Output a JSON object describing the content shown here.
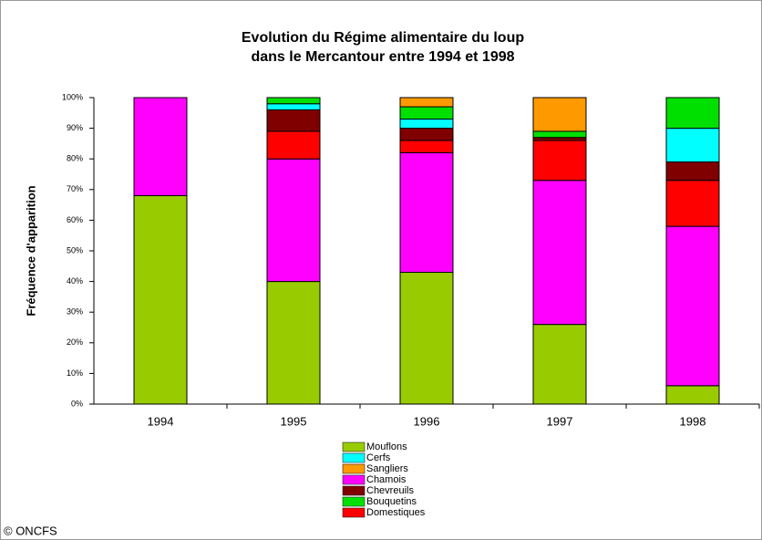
{
  "chart_data": {
    "type": "stacked_bar_100",
    "title": [
      "Evolution du Régime alimentaire du loup",
      "dans le Mercantour entre 1994 et 1998"
    ],
    "ylabel": "Fréquence d'apparition",
    "categories": [
      "1994",
      "1995",
      "1996",
      "1997",
      "1998"
    ],
    "series": [
      {
        "name": "Mouflons",
        "color": "#99cc00",
        "values": [
          68,
          40,
          43,
          26,
          6
        ]
      },
      {
        "name": "Cerfs",
        "color": "#00ffff",
        "values": [
          0,
          2,
          3,
          0,
          11
        ]
      },
      {
        "name": "Sangliers",
        "color": "#ff9900",
        "values": [
          0,
          0,
          3,
          11,
          0
        ]
      },
      {
        "name": "Chamois",
        "color": "#ff00ff",
        "values": [
          32,
          40,
          39,
          47,
          52
        ]
      },
      {
        "name": "Chevreuils",
        "color": "#800000",
        "values": [
          0,
          7,
          4,
          1,
          6
        ]
      },
      {
        "name": "Bouquetins",
        "color": "#00e000",
        "values": [
          0,
          2,
          4,
          2,
          10
        ]
      },
      {
        "name": "Domestiques",
        "color": "#ff0000",
        "values": [
          0,
          9,
          4,
          13,
          15
        ]
      }
    ],
    "ylim": [
      0,
      100
    ],
    "yticks": [
      {
        "value": 0,
        "label": "0%"
      },
      {
        "value": 10,
        "label": "10%"
      },
      {
        "value": 20,
        "label": "20%"
      },
      {
        "value": 30,
        "label": "30%"
      },
      {
        "value": 40,
        "label": "40%"
      },
      {
        "value": 50,
        "label": "50%"
      },
      {
        "value": 60,
        "label": "60%"
      },
      {
        "value": 70,
        "label": "70%"
      },
      {
        "value": 80,
        "label": "80%"
      },
      {
        "value": 90,
        "label": "90%"
      },
      {
        "value": 100,
        "label": "100%"
      }
    ],
    "source": "© ONCFS"
  }
}
